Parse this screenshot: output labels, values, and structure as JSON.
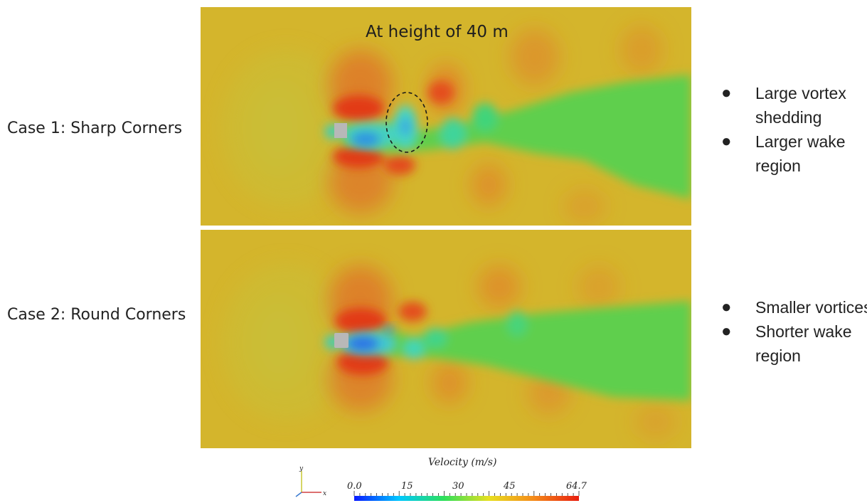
{
  "cases": [
    {
      "label": "Case 1: Sharp Corners",
      "observations": [
        "Large vortex shedding",
        "Larger wake region"
      ]
    },
    {
      "label": "Case 2: Round Corners",
      "observations": [
        "Smaller vortices",
        "Shorter wake region"
      ]
    }
  ],
  "panel_title": "At height of 40 m",
  "colorbar": {
    "title": "Velocity (m/s)",
    "ticks": [
      "0.0",
      "15",
      "30",
      "45",
      "64.7"
    ],
    "colors": [
      "#0a1aff",
      "#00c8ff",
      "#2ee05a",
      "#e8e020",
      "#f58a1a",
      "#e81e10"
    ]
  },
  "axes_triad": {
    "y": "y",
    "x": "x"
  },
  "colors": {
    "freestream": "#d8b82e",
    "wake_green": "#58cf50",
    "high_speed": "#e2552a",
    "low_speed": "#2a7be8",
    "building": "#b8b8b8"
  }
}
